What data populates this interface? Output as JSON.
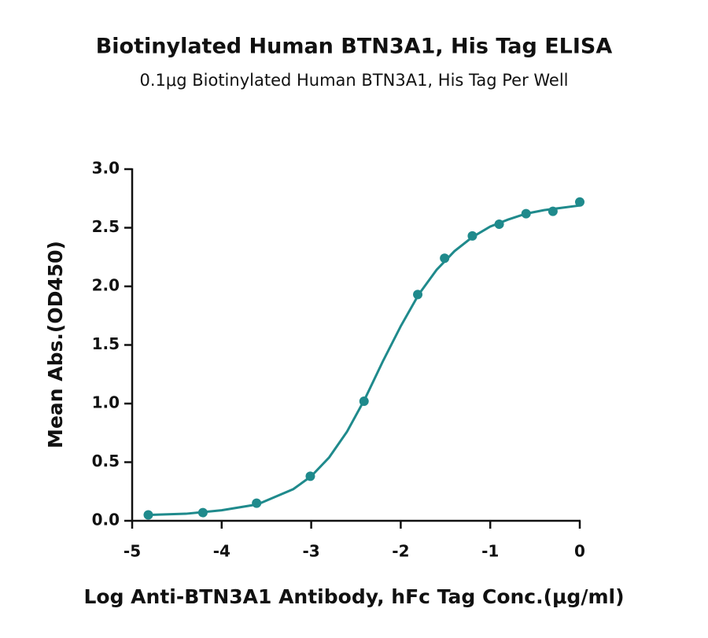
{
  "chart_data": {
    "type": "scatter",
    "title": "Biotinylated Human BTN3A1, His Tag ELISA",
    "subtitle": "0.1μg Biotinylated Human BTN3A1, His Tag Per Well",
    "x_label": "Log Anti-BTN3A1 Antibody, hFc  Tag Conc.(μg/ml)",
    "y_label": "Mean Abs.(OD450)",
    "color": "#1f8a8c",
    "x": [
      -4.82,
      -4.21,
      -3.61,
      -3.01,
      -2.41,
      -1.81,
      -1.51,
      -1.2,
      -0.9,
      -0.6,
      -0.3,
      0
    ],
    "values": [
      0.05,
      0.07,
      0.15,
      0.38,
      1.02,
      1.93,
      2.24,
      2.43,
      2.53,
      2.62,
      2.64,
      2.72
    ],
    "curve": {
      "x": [
        -4.8,
        -4.4,
        -4.0,
        -3.6,
        -3.2,
        -3.0,
        -2.8,
        -2.6,
        -2.4,
        -2.2,
        -2.0,
        -1.8,
        -1.6,
        -1.4,
        -1.2,
        -1.0,
        -0.8,
        -0.6,
        -0.4,
        -0.2,
        0
      ],
      "values": [
        0.05,
        0.06,
        0.09,
        0.14,
        0.27,
        0.38,
        0.54,
        0.76,
        1.04,
        1.36,
        1.66,
        1.93,
        2.14,
        2.3,
        2.42,
        2.51,
        2.57,
        2.62,
        2.65,
        2.67,
        2.69
      ]
    },
    "xlim": [
      -5,
      0
    ],
    "xticks": [
      -5,
      -4,
      -3,
      -2,
      -1,
      0
    ],
    "ylim": [
      0,
      3
    ],
    "yticks": [
      {
        "value": 0,
        "label": "0.0"
      },
      {
        "value": 0.5,
        "label": "0.5"
      },
      {
        "value": 1,
        "label": "1.0"
      },
      {
        "value": 1.5,
        "label": "1.5"
      },
      {
        "value": 2,
        "label": "2.0"
      },
      {
        "value": 2.5,
        "label": "2.5"
      },
      {
        "value": 3,
        "label": "3.0"
      }
    ]
  }
}
